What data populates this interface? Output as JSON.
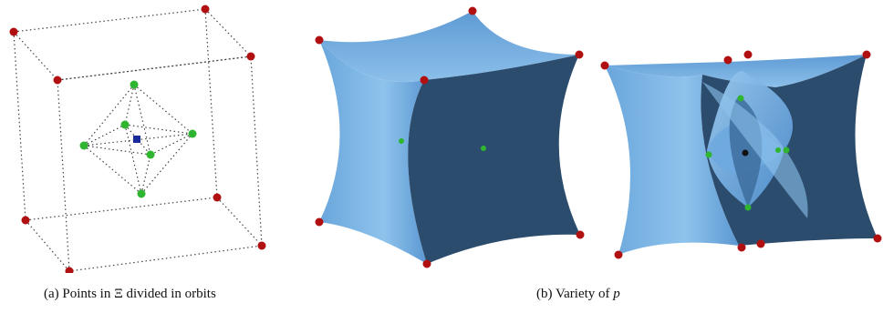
{
  "captions": {
    "a_label": "(a)",
    "a_text": "Points in Ξ divided in orbits",
    "b_label": "(b)",
    "b_text": "Variety of",
    "b_symbol": "p"
  },
  "colors": {
    "orbit_outer": "#b01010",
    "orbit_inner": "#2fb52f",
    "center_point": "#1a2a9a",
    "surface_light": "#7fb6e6",
    "surface_mid": "#4f8fcf",
    "surface_dark": "#2c4c6e",
    "center_point_b": "#111111"
  }
}
